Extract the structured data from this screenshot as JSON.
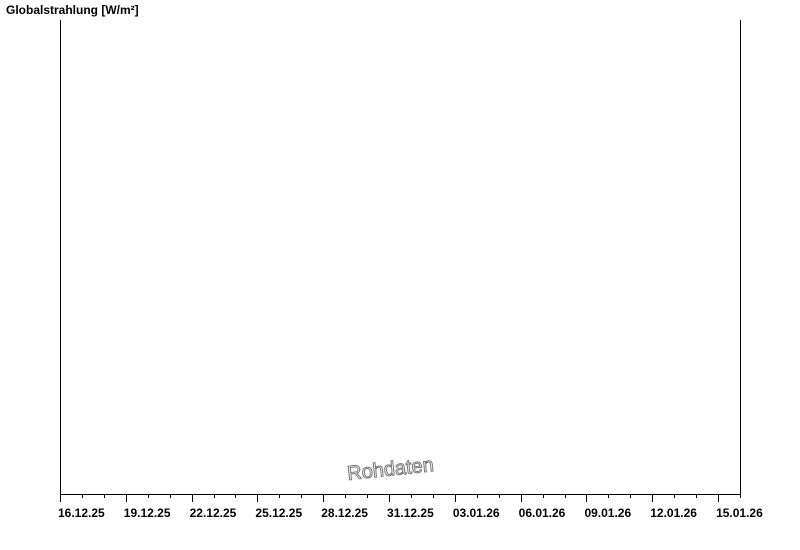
{
  "chart_data": {
    "type": "line",
    "ylabel": "Globalstrahlung [W/m²]",
    "watermark": "Rohdaten",
    "x_ticks": [
      "16.12.25",
      "19.12.25",
      "22.12.25",
      "25.12.25",
      "28.12.25",
      "31.12.25",
      "03.01.26",
      "06.01.26",
      "09.01.26",
      "12.01.26",
      "15.01.26"
    ],
    "xlim": [
      "16.12.25",
      "16.01.26"
    ],
    "minor_tick_interval_days": 1,
    "major_tick_interval_days": 3,
    "series": [],
    "grid": false,
    "colors": {
      "axis": "#000000",
      "watermark": "#777777"
    }
  }
}
